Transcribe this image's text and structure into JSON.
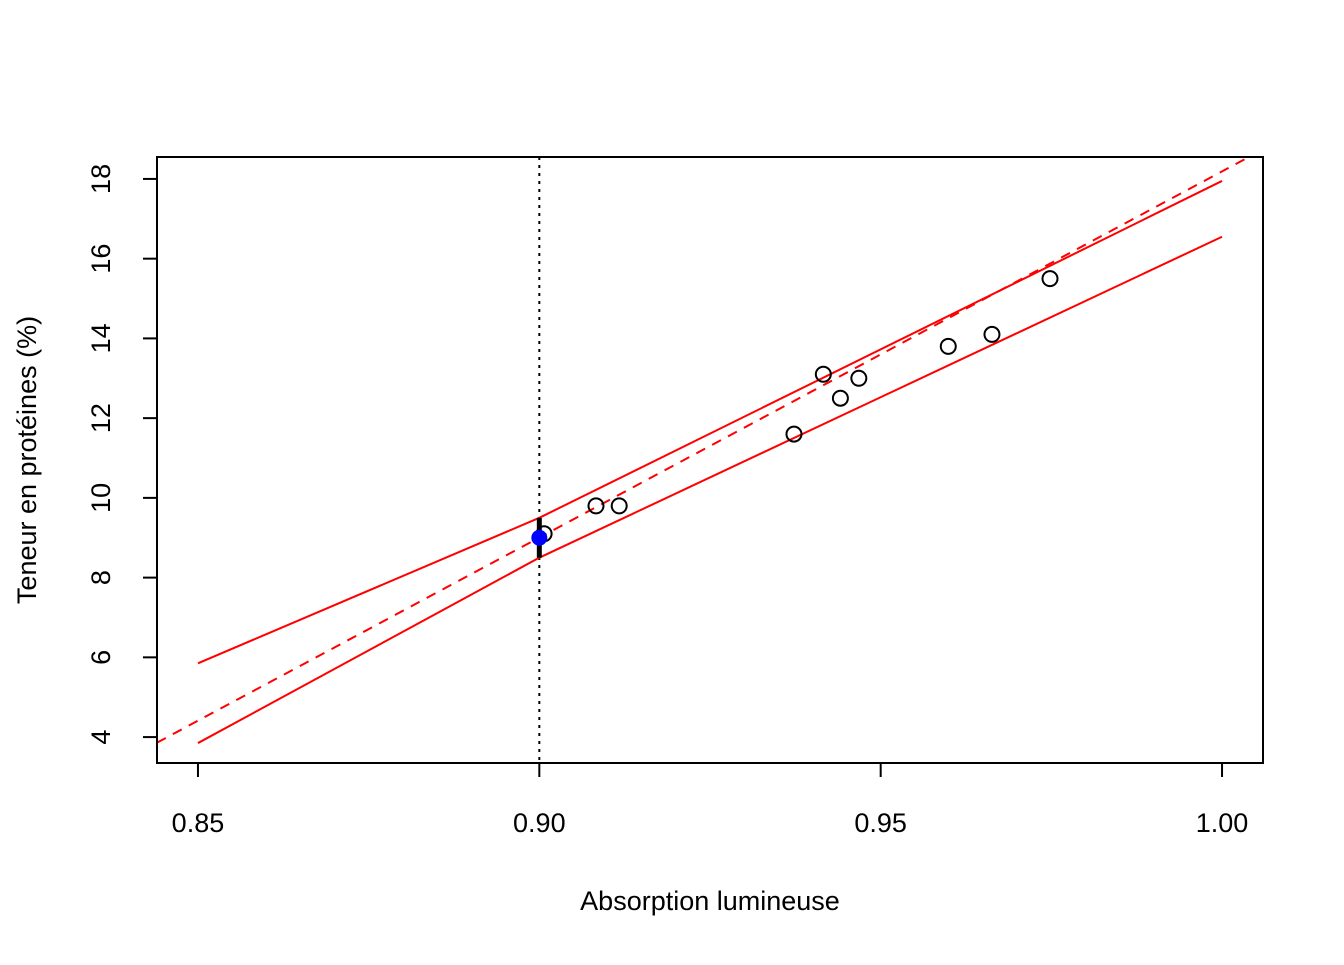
{
  "chart_data": {
    "type": "scatter",
    "title": "",
    "xlabel": "Absorption lumineuse",
    "ylabel": "Teneur en protéines (%)",
    "xlim": [
      0.844,
      1.006
    ],
    "ylim": [
      3.35,
      18.55
    ],
    "x_ticks": [
      0.85,
      0.9,
      0.95,
      1.0
    ],
    "x_tick_labels": [
      "0.85",
      "0.90",
      "0.95",
      "1.00"
    ],
    "y_ticks": [
      4,
      6,
      8,
      10,
      12,
      14,
      16,
      18
    ],
    "y_tick_labels": [
      "4",
      "6",
      "8",
      "10",
      "12",
      "14",
      "16",
      "18"
    ],
    "grid": false,
    "legend": "none",
    "colors": {
      "points": "#000000",
      "regression_line": "#ff0000",
      "confidence_band": "#ff0000",
      "highlight_point": "#0000ff",
      "reference_line": "#000000"
    },
    "points": {
      "x": [
        0.9007,
        0.9083,
        0.9117,
        0.9373,
        0.9416,
        0.9441,
        0.9468,
        0.9599,
        0.9663,
        0.9748
      ],
      "y": [
        9.1,
        9.8,
        9.8,
        11.6,
        13.1,
        12.5,
        13.0,
        13.8,
        14.1,
        15.5
      ]
    },
    "regression_line": {
      "intercept": -73.67,
      "slope": 91.86
    },
    "confidence_band": {
      "x": [
        0.85,
        0.9,
        1.0
      ],
      "lower": [
        3.85,
        8.5,
        16.55
      ],
      "upper": [
        5.85,
        9.5,
        17.95
      ]
    },
    "reference_x": 0.9,
    "predicted_point": {
      "x": 0.9,
      "y": 9.0,
      "interval": [
        8.5,
        9.5
      ]
    }
  }
}
